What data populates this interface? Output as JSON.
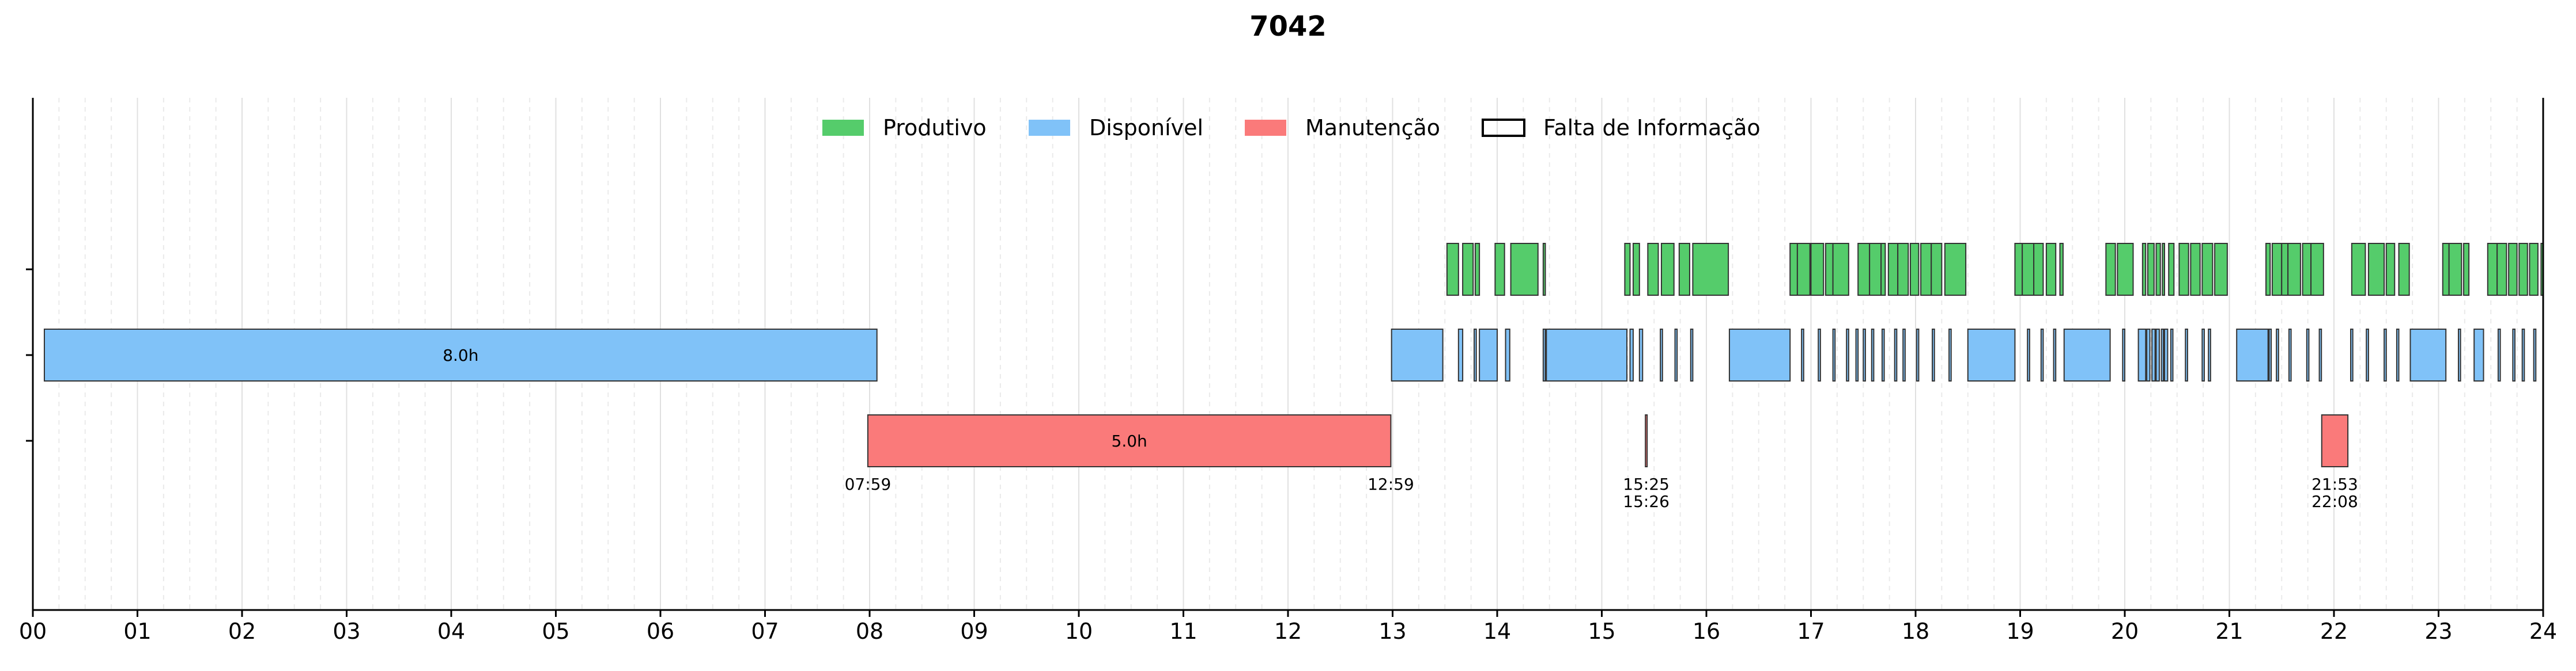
{
  "chart_data": {
    "type": "timeline",
    "title": "7042",
    "xlim": [
      0,
      24
    ],
    "x_ticks": [
      "00",
      "01",
      "02",
      "03",
      "04",
      "05",
      "06",
      "07",
      "08",
      "09",
      "10",
      "11",
      "12",
      "13",
      "14",
      "15",
      "16",
      "17",
      "18",
      "19",
      "20",
      "21",
      "22",
      "23",
      "24"
    ],
    "grid": "vertical, major every hour, minor every 15 min",
    "legend_position": "top-center",
    "legend": [
      {
        "label": "Produtivo",
        "style": "filled",
        "color": "#55cc6b"
      },
      {
        "label": "Disponível",
        "style": "filled",
        "color": "#80c2f8"
      },
      {
        "label": "Manutenção",
        "style": "filled",
        "color": "#fa7a7a"
      },
      {
        "label": "Falta de Informação",
        "style": "outline",
        "color": "#000000"
      }
    ],
    "colors": {
      "Produtivo": "#55cc6b",
      "Disponível": "#80c2f8",
      "Manutenção": "#fa7a7a",
      "edge": "#333333",
      "grid": "#dddddd"
    },
    "series": [
      {
        "key": "Produtivo",
        "intervals": [
          [
            13.52,
            13.63
          ],
          [
            13.67,
            13.77
          ],
          [
            13.79,
            13.83
          ],
          [
            13.98,
            14.07
          ],
          [
            14.13,
            14.39
          ],
          [
            14.44,
            14.46
          ],
          [
            15.22,
            15.27
          ],
          [
            15.3,
            15.36
          ],
          [
            15.44,
            15.54
          ],
          [
            15.57,
            15.69
          ],
          [
            15.74,
            15.84
          ],
          [
            15.87,
            16.21
          ],
          [
            16.8,
            16.87
          ],
          [
            16.87,
            16.99
          ],
          [
            17.0,
            17.12
          ],
          [
            17.14,
            17.21
          ],
          [
            17.21,
            17.36
          ],
          [
            17.45,
            17.56
          ],
          [
            17.56,
            17.67
          ],
          [
            17.67,
            17.71
          ],
          [
            17.74,
            17.83
          ],
          [
            17.83,
            17.93
          ],
          [
            17.95,
            18.03
          ],
          [
            18.05,
            18.15
          ],
          [
            18.15,
            18.25
          ],
          [
            18.28,
            18.48
          ],
          [
            18.95,
            19.02
          ],
          [
            19.02,
            19.13
          ],
          [
            19.13,
            19.22
          ],
          [
            19.25,
            19.34
          ],
          [
            19.38,
            19.41
          ],
          [
            19.82,
            19.91
          ],
          [
            19.93,
            20.08
          ],
          [
            20.17,
            20.2
          ],
          [
            20.22,
            20.28
          ],
          [
            20.3,
            20.34
          ],
          [
            20.36,
            20.38
          ],
          [
            20.42,
            20.47
          ],
          [
            20.52,
            20.61
          ],
          [
            20.63,
            20.72
          ],
          [
            20.74,
            20.84
          ],
          [
            20.86,
            20.98
          ],
          [
            21.35,
            21.39
          ],
          [
            21.41,
            21.5
          ],
          [
            21.5,
            21.56
          ],
          [
            21.56,
            21.68
          ],
          [
            21.7,
            21.78
          ],
          [
            21.78,
            21.9
          ],
          [
            22.17,
            22.3
          ],
          [
            22.33,
            22.48
          ],
          [
            22.5,
            22.58
          ],
          [
            22.62,
            22.72
          ],
          [
            23.04,
            23.1
          ],
          [
            23.1,
            23.22
          ],
          [
            23.24,
            23.29
          ],
          [
            23.47,
            23.56
          ],
          [
            23.56,
            23.65
          ],
          [
            23.67,
            23.75
          ],
          [
            23.77,
            23.85
          ],
          [
            23.87,
            23.95
          ],
          [
            23.98,
            24.0
          ]
        ]
      },
      {
        "key": "Disponível",
        "intervals": [
          [
            0.11,
            8.07
          ],
          [
            12.99,
            13.48
          ],
          [
            13.63,
            13.67
          ],
          [
            13.78,
            13.8
          ],
          [
            13.83,
            14.0
          ],
          [
            14.08,
            14.12
          ],
          [
            14.44,
            14.46
          ],
          [
            14.47,
            15.24
          ],
          [
            15.27,
            15.3
          ],
          [
            15.36,
            15.39
          ],
          [
            15.56,
            15.58
          ],
          [
            15.7,
            15.72
          ],
          [
            15.85,
            15.87
          ],
          [
            16.22,
            16.8
          ],
          [
            16.91,
            16.93
          ],
          [
            17.07,
            17.09
          ],
          [
            17.21,
            17.23
          ],
          [
            17.34,
            17.36
          ],
          [
            17.43,
            17.45
          ],
          [
            17.5,
            17.52
          ],
          [
            17.58,
            17.6
          ],
          [
            17.68,
            17.7
          ],
          [
            17.8,
            17.82
          ],
          [
            17.88,
            17.9
          ],
          [
            18.01,
            18.03
          ],
          [
            18.16,
            18.18
          ],
          [
            18.32,
            18.34
          ],
          [
            18.5,
            18.95
          ],
          [
            19.07,
            19.09
          ],
          [
            19.2,
            19.22
          ],
          [
            19.32,
            19.34
          ],
          [
            19.42,
            19.86
          ],
          [
            19.98,
            20.0
          ],
          [
            20.13,
            20.2
          ],
          [
            20.21,
            20.24
          ],
          [
            20.26,
            20.29
          ],
          [
            20.3,
            20.33
          ],
          [
            20.35,
            20.37
          ],
          [
            20.38,
            20.41
          ],
          [
            20.44,
            20.46
          ],
          [
            20.58,
            20.6
          ],
          [
            20.74,
            20.76
          ],
          [
            20.8,
            20.82
          ],
          [
            21.07,
            21.37
          ],
          [
            21.38,
            21.4
          ],
          [
            21.45,
            21.47
          ],
          [
            21.57,
            21.59
          ],
          [
            21.74,
            21.76
          ],
          [
            21.86,
            21.88
          ],
          [
            22.16,
            22.18
          ],
          [
            22.31,
            22.33
          ],
          [
            22.48,
            22.5
          ],
          [
            22.6,
            22.62
          ],
          [
            22.73,
            23.07
          ],
          [
            23.19,
            23.21
          ],
          [
            23.34,
            23.43
          ],
          [
            23.57,
            23.59
          ],
          [
            23.71,
            23.73
          ],
          [
            23.8,
            23.82
          ],
          [
            23.91,
            23.93
          ]
        ],
        "annotations": [
          {
            "start": 0.11,
            "end": 8.07,
            "label": "8.0h"
          }
        ]
      },
      {
        "key": "Manutenção",
        "intervals": [
          [
            7.983,
            12.983
          ],
          [
            15.417,
            15.433
          ],
          [
            21.883,
            22.133
          ]
        ],
        "annotations": [
          {
            "start": 7.983,
            "end": 12.983,
            "label": "5.0h",
            "start_label": "07:59",
            "end_label": "12:59"
          },
          {
            "start": 15.417,
            "end": 15.433,
            "start_label": "15:25",
            "end_label": "15:26"
          },
          {
            "start": 21.883,
            "end": 22.133,
            "start_label": "21:53",
            "end_label": "22:08"
          }
        ]
      }
    ]
  }
}
